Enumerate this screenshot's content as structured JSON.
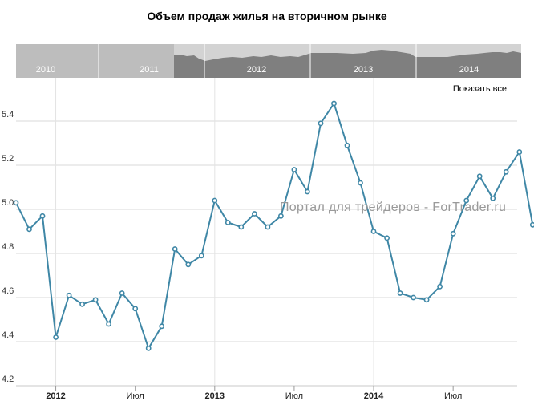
{
  "title": "Объем продаж жилья на вторичном рынке",
  "show_all_label": "Показать все",
  "watermark": "Портал для трейдеров - ForTrader.ru",
  "colors": {
    "line": "#3f87a6",
    "nav_selected": "#7f7f7f",
    "nav_unselected": "#bdbdbd",
    "nav_area": "#d3d3d3"
  },
  "navigator": {
    "years": [
      "2010",
      "2011",
      "2012",
      "2013",
      "2014"
    ],
    "selected_range": [
      "2011-10",
      "2015-01"
    ]
  },
  "chart_data": {
    "type": "line",
    "title": "Объем продаж жилья на вторичном рынке",
    "xlabel": "",
    "ylabel": "",
    "ylim": [
      4.2,
      5.6
    ],
    "y_ticks": [
      "4.2",
      "4.4",
      "4.6",
      "4.8",
      "5.0",
      "5.2",
      "5.4"
    ],
    "x_ticks": [
      {
        "label": "2012",
        "date": "2012-01",
        "bold": true
      },
      {
        "label": "Июл",
        "date": "2012-07",
        "bold": false
      },
      {
        "label": "2013",
        "date": "2013-01",
        "bold": true
      },
      {
        "label": "Июл",
        "date": "2013-07",
        "bold": false
      },
      {
        "label": "2014",
        "date": "2014-01",
        "bold": true
      },
      {
        "label": "Июл",
        "date": "2014-07",
        "bold": false
      }
    ],
    "x_range": [
      "2011-10",
      "2015-01"
    ],
    "grid": true,
    "series": [
      {
        "x": [
          "2011-10",
          "2011-11",
          "2011-12",
          "2012-01",
          "2012-02",
          "2012-03",
          "2012-04",
          "2012-05",
          "2012-06",
          "2012-07",
          "2012-08",
          "2012-09",
          "2012-10",
          "2012-11",
          "2012-12",
          "2013-01",
          "2013-02",
          "2013-03",
          "2013-04",
          "2013-05",
          "2013-06",
          "2013-07",
          "2013-08",
          "2013-09",
          "2013-10",
          "2013-11",
          "2013-12",
          "2014-01",
          "2014-02",
          "2014-03",
          "2014-04",
          "2014-05",
          "2014-06",
          "2014-07",
          "2014-08",
          "2014-09",
          "2014-10",
          "2014-11",
          "2014-12",
          "2015-01"
        ],
        "values": [
          5.03,
          4.91,
          4.97,
          4.42,
          4.61,
          4.57,
          4.59,
          4.48,
          4.62,
          4.55,
          4.37,
          4.47,
          4.82,
          4.75,
          4.79,
          5.04,
          4.94,
          4.92,
          4.98,
          4.92,
          4.97,
          5.18,
          5.08,
          5.39,
          5.48,
          5.29,
          5.12,
          4.9,
          4.87,
          4.62,
          4.6,
          4.59,
          4.65,
          4.89,
          5.04,
          5.15,
          5.05,
          5.17,
          5.26,
          4.93
        ]
      }
    ]
  }
}
